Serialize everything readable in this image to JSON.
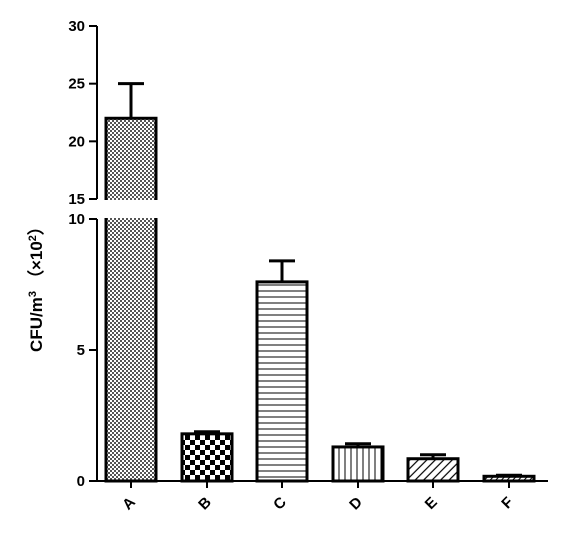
{
  "chart_data": {
    "type": "bar",
    "categories": [
      "A",
      "B",
      "C",
      "D",
      "E",
      "F"
    ],
    "values": [
      22.0,
      1.8,
      7.6,
      1.3,
      0.85,
      0.18
    ],
    "errors": [
      3.0,
      0.08,
      0.8,
      0.12,
      0.15,
      0.04
    ],
    "ylabel": "CFU/m",
    "ylabel_sup": "3",
    "ylabel_factor": "（×10",
    "ylabel_factor_sup": "2",
    "ylabel_close": "）",
    "axis_break": true,
    "y_segments": [
      {
        "range": [
          0,
          10
        ],
        "ticks": [
          "0",
          "5",
          "10"
        ]
      },
      {
        "range": [
          15,
          30
        ],
        "ticks": [
          "15",
          "20",
          "25",
          "30"
        ]
      }
    ],
    "patterns": [
      "dense-check",
      "checkerboard",
      "horizontal-lines",
      "vertical-lines",
      "diagonal-lines",
      "fine-diagonal"
    ]
  }
}
